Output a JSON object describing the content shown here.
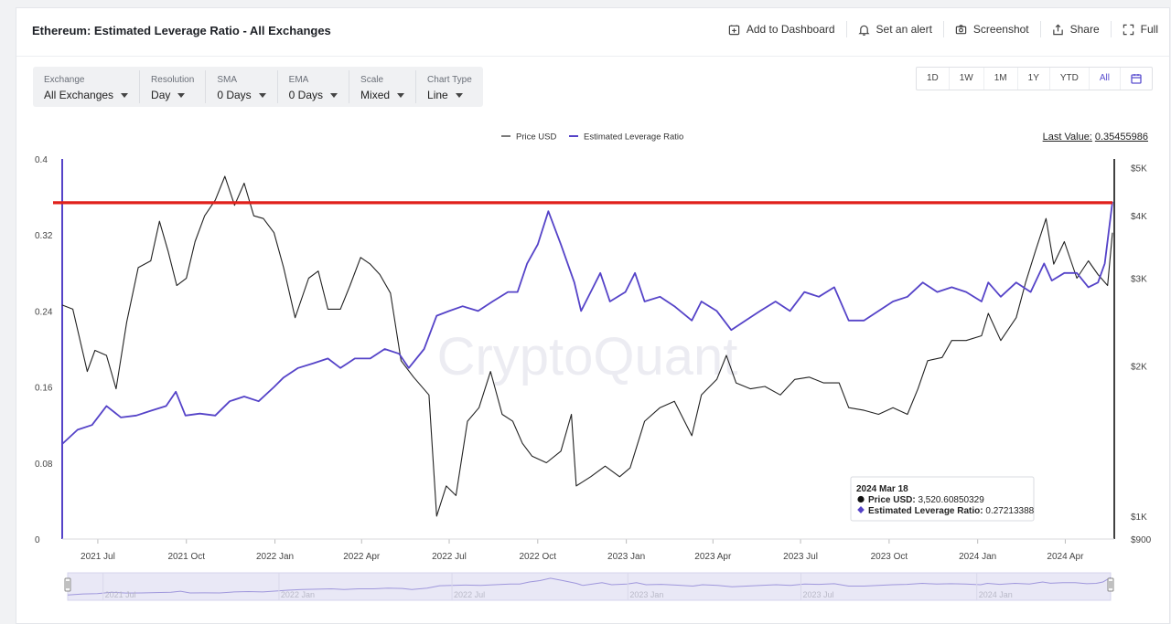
{
  "header": {
    "title": "Ethereum: Estimated Leverage Ratio - All Exchanges",
    "actions": [
      {
        "label": "Add to Dashboard",
        "icon": "dashboard-add-icon"
      },
      {
        "label": "Set an alert",
        "icon": "bell-icon"
      },
      {
        "label": "Screenshot",
        "icon": "camera-icon"
      },
      {
        "label": "Share",
        "icon": "share-icon"
      },
      {
        "label": "Full",
        "icon": "fullscreen-icon"
      }
    ]
  },
  "filters": [
    {
      "label": "Exchange",
      "value": "All Exchanges"
    },
    {
      "label": "Resolution",
      "value": "Day"
    },
    {
      "label": "SMA",
      "value": "0 Days"
    },
    {
      "label": "EMA",
      "value": "0 Days"
    },
    {
      "label": "Scale",
      "value": "Mixed"
    },
    {
      "label": "Chart Type",
      "value": "Line"
    }
  ],
  "ranges": [
    "1D",
    "1W",
    "1M",
    "1Y",
    "YTD",
    "All"
  ],
  "active_range": "All",
  "last_value": {
    "label": "Last Value:",
    "value": "0.35455986"
  },
  "watermark": "CryptoQuant",
  "colors": {
    "price": "#222222",
    "leverage": "#5543c8",
    "threshold": "#e0201b",
    "accent": "#5a4fcf"
  },
  "chart_data": {
    "type": "line",
    "legend": [
      "Price USD",
      "Estimated Leverage Ratio"
    ],
    "legend_position": "top-center",
    "x_ticks": [
      "2021 Jul",
      "2021 Oct",
      "2022 Jan",
      "2022 Apr",
      "2022 Jul",
      "2022 Oct",
      "2023 Jan",
      "2023 Apr",
      "2023 Jul",
      "2023 Oct",
      "2024 Jan",
      "2024 Apr"
    ],
    "x_range": [
      "2021-05-25",
      "2024-05-20"
    ],
    "y_left": {
      "ticks": [
        "0",
        "0.08",
        "0.16",
        "0.24",
        "0.32",
        "0.4"
      ],
      "range": [
        0,
        0.4
      ]
    },
    "y_right": {
      "ticks": [
        "$900",
        "$1K",
        "$2K",
        "$3K",
        "$4K",
        "$5K"
      ],
      "scale": "log",
      "range": [
        900,
        5200
      ]
    },
    "threshold_line": 0.354,
    "series": [
      {
        "name": "Price USD",
        "axis": "right",
        "points": [
          [
            "2021-05-25",
            2650
          ],
          [
            "2021-06-05",
            2600
          ],
          [
            "2021-06-20",
            1950
          ],
          [
            "2021-06-28",
            2150
          ],
          [
            "2021-07-10",
            2100
          ],
          [
            "2021-07-20",
            1800
          ],
          [
            "2021-07-31",
            2450
          ],
          [
            "2021-08-12",
            3150
          ],
          [
            "2021-08-25",
            3250
          ],
          [
            "2021-09-03",
            3900
          ],
          [
            "2021-09-12",
            3400
          ],
          [
            "2021-09-21",
            2900
          ],
          [
            "2021-10-01",
            3000
          ],
          [
            "2021-10-10",
            3550
          ],
          [
            "2021-10-20",
            4000
          ],
          [
            "2021-10-31",
            4300
          ],
          [
            "2021-11-10",
            4800
          ],
          [
            "2021-11-20",
            4200
          ],
          [
            "2021-11-30",
            4650
          ],
          [
            "2021-12-10",
            4000
          ],
          [
            "2021-12-20",
            3950
          ],
          [
            "2021-12-31",
            3700
          ],
          [
            "2022-01-10",
            3150
          ],
          [
            "2022-01-22",
            2500
          ],
          [
            "2022-02-05",
            3000
          ],
          [
            "2022-02-15",
            3100
          ],
          [
            "2022-02-25",
            2600
          ],
          [
            "2022-03-10",
            2600
          ],
          [
            "2022-03-20",
            2900
          ],
          [
            "2022-03-31",
            3300
          ],
          [
            "2022-04-10",
            3200
          ],
          [
            "2022-04-20",
            3050
          ],
          [
            "2022-05-01",
            2800
          ],
          [
            "2022-05-12",
            2050
          ],
          [
            "2022-05-25",
            1900
          ],
          [
            "2022-06-10",
            1750
          ],
          [
            "2022-06-18",
            1000
          ],
          [
            "2022-06-28",
            1150
          ],
          [
            "2022-07-08",
            1100
          ],
          [
            "2022-07-20",
            1550
          ],
          [
            "2022-08-01",
            1650
          ],
          [
            "2022-08-13",
            1950
          ],
          [
            "2022-08-25",
            1600
          ],
          [
            "2022-09-05",
            1550
          ],
          [
            "2022-09-15",
            1400
          ],
          [
            "2022-09-25",
            1320
          ],
          [
            "2022-10-10",
            1280
          ],
          [
            "2022-10-25",
            1350
          ],
          [
            "2022-11-05",
            1600
          ],
          [
            "2022-11-10",
            1150
          ],
          [
            "2022-11-25",
            1200
          ],
          [
            "2022-12-10",
            1260
          ],
          [
            "2022-12-25",
            1200
          ],
          [
            "2023-01-05",
            1250
          ],
          [
            "2023-01-20",
            1550
          ],
          [
            "2023-02-05",
            1650
          ],
          [
            "2023-02-20",
            1700
          ],
          [
            "2023-03-10",
            1450
          ],
          [
            "2023-03-20",
            1750
          ],
          [
            "2023-04-05",
            1880
          ],
          [
            "2023-04-15",
            2100
          ],
          [
            "2023-04-25",
            1850
          ],
          [
            "2023-05-10",
            1800
          ],
          [
            "2023-05-25",
            1820
          ],
          [
            "2023-06-10",
            1750
          ],
          [
            "2023-06-25",
            1880
          ],
          [
            "2023-07-10",
            1900
          ],
          [
            "2023-07-25",
            1850
          ],
          [
            "2023-08-10",
            1850
          ],
          [
            "2023-08-20",
            1650
          ],
          [
            "2023-09-05",
            1630
          ],
          [
            "2023-09-20",
            1600
          ],
          [
            "2023-10-05",
            1650
          ],
          [
            "2023-10-20",
            1600
          ],
          [
            "2023-10-31",
            1800
          ],
          [
            "2023-11-10",
            2050
          ],
          [
            "2023-11-25",
            2080
          ],
          [
            "2023-12-05",
            2250
          ],
          [
            "2023-12-20",
            2250
          ],
          [
            "2024-01-05",
            2300
          ],
          [
            "2024-01-12",
            2550
          ],
          [
            "2024-01-25",
            2250
          ],
          [
            "2024-02-10",
            2500
          ],
          [
            "2024-02-20",
            2950
          ],
          [
            "2024-03-01",
            3400
          ],
          [
            "2024-03-12",
            3950
          ],
          [
            "2024-03-20",
            3200
          ],
          [
            "2024-03-31",
            3550
          ],
          [
            "2024-04-13",
            3000
          ],
          [
            "2024-04-25",
            3250
          ],
          [
            "2024-05-05",
            3050
          ],
          [
            "2024-05-15",
            2900
          ],
          [
            "2024-05-20",
            3700
          ]
        ]
      },
      {
        "name": "Estimated Leverage Ratio",
        "axis": "left",
        "points": [
          [
            "2021-05-25",
            0.1
          ],
          [
            "2021-06-10",
            0.115
          ],
          [
            "2021-06-25",
            0.12
          ],
          [
            "2021-07-10",
            0.14
          ],
          [
            "2021-07-25",
            0.128
          ],
          [
            "2021-08-10",
            0.13
          ],
          [
            "2021-08-25",
            0.135
          ],
          [
            "2021-09-10",
            0.14
          ],
          [
            "2021-09-20",
            0.155
          ],
          [
            "2021-09-30",
            0.13
          ],
          [
            "2021-10-15",
            0.132
          ],
          [
            "2021-10-31",
            0.13
          ],
          [
            "2021-11-15",
            0.145
          ],
          [
            "2021-11-30",
            0.15
          ],
          [
            "2021-12-15",
            0.145
          ],
          [
            "2021-12-31",
            0.16
          ],
          [
            "2022-01-10",
            0.17
          ],
          [
            "2022-01-25",
            0.18
          ],
          [
            "2022-02-10",
            0.185
          ],
          [
            "2022-02-25",
            0.19
          ],
          [
            "2022-03-10",
            0.18
          ],
          [
            "2022-03-25",
            0.19
          ],
          [
            "2022-04-10",
            0.19
          ],
          [
            "2022-04-25",
            0.2
          ],
          [
            "2022-05-10",
            0.195
          ],
          [
            "2022-05-20",
            0.18
          ],
          [
            "2022-06-05",
            0.2
          ],
          [
            "2022-06-18",
            0.235
          ],
          [
            "2022-07-01",
            0.24
          ],
          [
            "2022-07-15",
            0.245
          ],
          [
            "2022-07-31",
            0.24
          ],
          [
            "2022-08-15",
            0.25
          ],
          [
            "2022-08-31",
            0.26
          ],
          [
            "2022-09-10",
            0.26
          ],
          [
            "2022-09-20",
            0.29
          ],
          [
            "2022-10-01",
            0.31
          ],
          [
            "2022-10-12",
            0.345
          ],
          [
            "2022-10-25",
            0.31
          ],
          [
            "2022-11-08",
            0.27
          ],
          [
            "2022-11-15",
            0.24
          ],
          [
            "2022-11-25",
            0.26
          ],
          [
            "2022-12-05",
            0.28
          ],
          [
            "2022-12-15",
            0.25
          ],
          [
            "2022-12-31",
            0.26
          ],
          [
            "2023-01-10",
            0.28
          ],
          [
            "2023-01-20",
            0.25
          ],
          [
            "2023-02-05",
            0.255
          ],
          [
            "2023-02-20",
            0.245
          ],
          [
            "2023-03-10",
            0.23
          ],
          [
            "2023-03-20",
            0.25
          ],
          [
            "2023-04-05",
            0.24
          ],
          [
            "2023-04-20",
            0.22
          ],
          [
            "2023-05-05",
            0.23
          ],
          [
            "2023-05-20",
            0.24
          ],
          [
            "2023-06-05",
            0.25
          ],
          [
            "2023-06-20",
            0.24
          ],
          [
            "2023-07-05",
            0.26
          ],
          [
            "2023-07-20",
            0.255
          ],
          [
            "2023-08-05",
            0.265
          ],
          [
            "2023-08-20",
            0.23
          ],
          [
            "2023-09-05",
            0.23
          ],
          [
            "2023-09-20",
            0.24
          ],
          [
            "2023-10-05",
            0.25
          ],
          [
            "2023-10-20",
            0.255
          ],
          [
            "2023-11-05",
            0.27
          ],
          [
            "2023-11-20",
            0.26
          ],
          [
            "2023-12-05",
            0.265
          ],
          [
            "2023-12-20",
            0.26
          ],
          [
            "2024-01-05",
            0.25
          ],
          [
            "2024-01-12",
            0.27
          ],
          [
            "2024-01-25",
            0.255
          ],
          [
            "2024-02-10",
            0.27
          ],
          [
            "2024-02-25",
            0.26
          ],
          [
            "2024-03-10",
            0.29
          ],
          [
            "2024-03-18",
            0.272
          ],
          [
            "2024-03-31",
            0.28
          ],
          [
            "2024-04-13",
            0.28
          ],
          [
            "2024-04-25",
            0.265
          ],
          [
            "2024-05-05",
            0.27
          ],
          [
            "2024-05-12",
            0.29
          ],
          [
            "2024-05-20",
            0.355
          ]
        ]
      }
    ],
    "tooltip": {
      "date": "2024 Mar 18",
      "rows": [
        {
          "label": "Price USD:",
          "value": "3,520.60850329"
        },
        {
          "label": "Estimated Leverage Ratio:",
          "value": "0.27213388"
        }
      ]
    },
    "navigator_ticks": [
      "2021 Jul",
      "2022 Jan",
      "2022 Jul",
      "2023 Jan",
      "2023 Jul",
      "2024 Jan"
    ]
  }
}
